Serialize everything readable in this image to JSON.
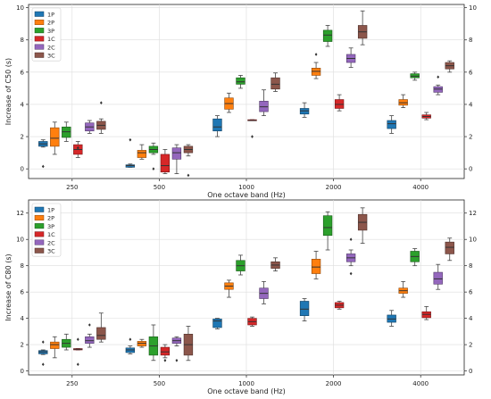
{
  "chart_data": [
    {
      "type": "box",
      "xlabel": "One octave band (Hz)",
      "ylabel": "Increase of C50 (s)",
      "categories": [
        "250",
        "500",
        "1000",
        "2000",
        "4000"
      ],
      "ylim": [
        -0.6,
        10.2
      ],
      "yticks": [
        0,
        2,
        4,
        6,
        8,
        10
      ],
      "grid": true,
      "legend_position": "top-left",
      "series": [
        {
          "name": "1P",
          "color": "#1f77b4",
          "boxes": [
            {
              "min": 1.35,
              "q1": 1.4,
              "median": 1.55,
              "q3": 1.7,
              "max": 1.8,
              "fliers": [
                0.15
              ]
            },
            {
              "min": 0.1,
              "q1": 0.1,
              "median": 0.2,
              "q3": 0.25,
              "max": 0.3,
              "fliers": [
                1.8
              ]
            },
            {
              "min": 2.0,
              "q1": 2.35,
              "median": 2.6,
              "q3": 3.1,
              "max": 3.3,
              "fliers": []
            },
            {
              "min": 3.2,
              "q1": 3.4,
              "median": 3.6,
              "q3": 3.75,
              "max": 4.1,
              "fliers": []
            },
            {
              "min": 2.2,
              "q1": 2.5,
              "median": 2.8,
              "q3": 3.0,
              "max": 3.3,
              "fliers": []
            }
          ]
        },
        {
          "name": "2P",
          "color": "#ff7f0e",
          "boxes": [
            {
              "min": 0.9,
              "q1": 1.4,
              "median": 1.9,
              "q3": 2.55,
              "max": 2.9,
              "fliers": []
            },
            {
              "min": 0.6,
              "q1": 0.7,
              "median": 1.0,
              "q3": 1.15,
              "max": 1.5,
              "fliers": []
            },
            {
              "min": 3.5,
              "q1": 3.7,
              "median": 4.05,
              "q3": 4.4,
              "max": 4.7,
              "fliers": []
            },
            {
              "min": 5.6,
              "q1": 5.8,
              "median": 6.05,
              "q3": 6.25,
              "max": 6.6,
              "fliers": [
                7.1
              ]
            },
            {
              "min": 3.8,
              "q1": 3.95,
              "median": 4.1,
              "q3": 4.3,
              "max": 4.6,
              "fliers": []
            }
          ]
        },
        {
          "name": "3P",
          "color": "#2ca02c",
          "boxes": [
            {
              "min": 1.7,
              "q1": 1.95,
              "median": 2.3,
              "q3": 2.6,
              "max": 2.9,
              "fliers": []
            },
            {
              "min": 0.9,
              "q1": 1.0,
              "median": 1.2,
              "q3": 1.4,
              "max": 1.6,
              "fliers": [
                0.0
              ]
            },
            {
              "min": 5.0,
              "q1": 5.25,
              "median": 5.4,
              "q3": 5.65,
              "max": 5.8,
              "fliers": []
            },
            {
              "min": 7.6,
              "q1": 7.9,
              "median": 8.3,
              "q3": 8.6,
              "max": 8.9,
              "fliers": []
            },
            {
              "min": 5.5,
              "q1": 5.65,
              "median": 5.75,
              "q3": 5.9,
              "max": 6.0,
              "fliers": []
            }
          ]
        },
        {
          "name": "1C",
          "color": "#d62728",
          "boxes": [
            {
              "min": 0.7,
              "q1": 0.9,
              "median": 1.2,
              "q3": 1.5,
              "max": 1.7,
              "fliers": [
                1.3
              ]
            },
            {
              "min": -0.3,
              "q1": -0.2,
              "median": 0.2,
              "q3": 0.9,
              "max": 1.2,
              "fliers": []
            },
            {
              "min": 3.0,
              "q1": 3.0,
              "median": 3.0,
              "q3": 3.05,
              "max": 3.05,
              "fliers": [
                2.0
              ]
            },
            {
              "min": 3.6,
              "q1": 3.75,
              "median": 4.0,
              "q3": 4.3,
              "max": 4.6,
              "fliers": []
            },
            {
              "min": 3.05,
              "q1": 3.15,
              "median": 3.25,
              "q3": 3.35,
              "max": 3.5,
              "fliers": []
            }
          ]
        },
        {
          "name": "2C",
          "color": "#9467bd",
          "boxes": [
            {
              "min": 2.2,
              "q1": 2.35,
              "median": 2.6,
              "q3": 2.85,
              "max": 3.0,
              "fliers": []
            },
            {
              "min": -0.3,
              "q1": 0.6,
              "median": 1.0,
              "q3": 1.3,
              "max": 1.5,
              "fliers": []
            },
            {
              "min": 3.3,
              "q1": 3.55,
              "median": 3.85,
              "q3": 4.2,
              "max": 4.9,
              "fliers": []
            },
            {
              "min": 6.3,
              "q1": 6.6,
              "median": 6.85,
              "q3": 7.1,
              "max": 7.5,
              "fliers": []
            },
            {
              "min": 4.6,
              "q1": 4.75,
              "median": 4.95,
              "q3": 5.1,
              "max": 5.2,
              "fliers": [
                5.7
              ]
            }
          ]
        },
        {
          "name": "3C",
          "color": "#8c564b",
          "boxes": [
            {
              "min": 2.2,
              "q1": 2.45,
              "median": 2.7,
              "q3": 2.95,
              "max": 3.1,
              "fliers": [
                4.1
              ]
            },
            {
              "min": 0.8,
              "q1": 1.0,
              "median": 1.2,
              "q3": 1.4,
              "max": 1.5,
              "fliers": [
                -0.4
              ]
            },
            {
              "min": 4.8,
              "q1": 4.95,
              "median": 5.25,
              "q3": 5.65,
              "max": 5.95,
              "fliers": []
            },
            {
              "min": 7.7,
              "q1": 8.1,
              "median": 8.5,
              "q3": 8.9,
              "max": 9.8,
              "fliers": []
            },
            {
              "min": 6.0,
              "q1": 6.2,
              "median": 6.4,
              "q3": 6.6,
              "max": 6.7,
              "fliers": []
            }
          ]
        }
      ]
    },
    {
      "type": "box",
      "xlabel": "One octave band (Hz)",
      "ylabel": "Increase of C80 (s)",
      "categories": [
        "250",
        "500",
        "1000",
        "2000",
        "4000"
      ],
      "ylim": [
        -0.3,
        13.0
      ],
      "yticks": [
        0,
        2,
        4,
        6,
        8,
        10,
        12
      ],
      "grid": true,
      "legend_position": "top-left",
      "series": [
        {
          "name": "1P",
          "color": "#1f77b4",
          "boxes": [
            {
              "min": 1.25,
              "q1": 1.3,
              "median": 1.45,
              "q3": 1.55,
              "max": 1.6,
              "fliers": [
                0.5,
                2.2
              ]
            },
            {
              "min": 1.3,
              "q1": 1.4,
              "median": 1.6,
              "q3": 1.75,
              "max": 1.9,
              "fliers": [
                2.4
              ]
            },
            {
              "min": 3.2,
              "q1": 3.3,
              "median": 3.8,
              "q3": 3.95,
              "max": 4.0,
              "fliers": []
            },
            {
              "min": 3.8,
              "q1": 4.2,
              "median": 4.7,
              "q3": 5.3,
              "max": 5.5,
              "fliers": []
            },
            {
              "min": 3.4,
              "q1": 3.7,
              "median": 3.95,
              "q3": 4.25,
              "max": 4.6,
              "fliers": []
            }
          ]
        },
        {
          "name": "2P",
          "color": "#ff7f0e",
          "boxes": [
            {
              "min": 1.0,
              "q1": 1.7,
              "median": 2.0,
              "q3": 2.2,
              "max": 2.6,
              "fliers": []
            },
            {
              "min": 1.8,
              "q1": 1.9,
              "median": 2.1,
              "q3": 2.25,
              "max": 2.4,
              "fliers": []
            },
            {
              "min": 5.6,
              "q1": 6.2,
              "median": 6.45,
              "q3": 6.7,
              "max": 6.9,
              "fliers": []
            },
            {
              "min": 7.0,
              "q1": 7.4,
              "median": 7.9,
              "q3": 8.5,
              "max": 9.1,
              "fliers": []
            },
            {
              "min": 5.6,
              "q1": 5.9,
              "median": 6.1,
              "q3": 6.3,
              "max": 6.8,
              "fliers": []
            }
          ]
        },
        {
          "name": "3P",
          "color": "#2ca02c",
          "boxes": [
            {
              "min": 1.6,
              "q1": 1.8,
              "median": 2.1,
              "q3": 2.4,
              "max": 2.8,
              "fliers": []
            },
            {
              "min": 0.8,
              "q1": 1.2,
              "median": 1.9,
              "q3": 2.6,
              "max": 3.5,
              "fliers": []
            },
            {
              "min": 7.3,
              "q1": 7.6,
              "median": 8.0,
              "q3": 8.4,
              "max": 8.8,
              "fliers": []
            },
            {
              "min": 9.2,
              "q1": 10.3,
              "median": 10.9,
              "q3": 11.8,
              "max": 12.1,
              "fliers": []
            },
            {
              "min": 8.0,
              "q1": 8.3,
              "median": 8.7,
              "q3": 9.1,
              "max": 9.3,
              "fliers": []
            }
          ]
        },
        {
          "name": "1C",
          "color": "#d62728",
          "boxes": [
            {
              "min": 1.6,
              "q1": 1.6,
              "median": 1.65,
              "q3": 1.7,
              "max": 1.7,
              "fliers": [
                0.5,
                2.4
              ]
            },
            {
              "min": 1.0,
              "q1": 1.2,
              "median": 1.45,
              "q3": 1.8,
              "max": 2.0,
              "fliers": [
                0.8
              ]
            },
            {
              "min": 3.4,
              "q1": 3.5,
              "median": 3.75,
              "q3": 4.0,
              "max": 4.1,
              "fliers": []
            },
            {
              "min": 4.7,
              "q1": 4.8,
              "median": 5.0,
              "q3": 5.2,
              "max": 5.3,
              "fliers": []
            },
            {
              "min": 3.9,
              "q1": 4.05,
              "median": 4.3,
              "q3": 4.5,
              "max": 4.9,
              "fliers": []
            }
          ]
        },
        {
          "name": "2C",
          "color": "#9467bd",
          "boxes": [
            {
              "min": 1.8,
              "q1": 2.1,
              "median": 2.3,
              "q3": 2.6,
              "max": 2.8,
              "fliers": [
                3.5
              ]
            },
            {
              "min": 1.9,
              "q1": 2.1,
              "median": 2.3,
              "q3": 2.5,
              "max": 2.6,
              "fliers": [
                0.8
              ]
            },
            {
              "min": 5.1,
              "q1": 5.5,
              "median": 5.9,
              "q3": 6.3,
              "max": 6.8,
              "fliers": []
            },
            {
              "min": 8.0,
              "q1": 8.3,
              "median": 8.6,
              "q3": 8.9,
              "max": 9.2,
              "fliers": [
                7.4,
                10.0
              ]
            },
            {
              "min": 6.2,
              "q1": 6.6,
              "median": 7.0,
              "q3": 7.5,
              "max": 8.1,
              "fliers": []
            }
          ]
        },
        {
          "name": "3C",
          "color": "#8c564b",
          "boxes": [
            {
              "min": 2.2,
              "q1": 2.4,
              "median": 2.7,
              "q3": 3.3,
              "max": 4.4,
              "fliers": []
            },
            {
              "min": 0.8,
              "q1": 1.2,
              "median": 2.0,
              "q3": 2.8,
              "max": 3.4,
              "fliers": []
            },
            {
              "min": 7.6,
              "q1": 7.8,
              "median": 8.05,
              "q3": 8.3,
              "max": 8.6,
              "fliers": []
            },
            {
              "min": 9.7,
              "q1": 10.7,
              "median": 11.3,
              "q3": 11.9,
              "max": 12.4,
              "fliers": []
            },
            {
              "min": 8.4,
              "q1": 8.9,
              "median": 9.4,
              "q3": 9.8,
              "max": 10.1,
              "fliers": []
            }
          ]
        }
      ]
    }
  ]
}
